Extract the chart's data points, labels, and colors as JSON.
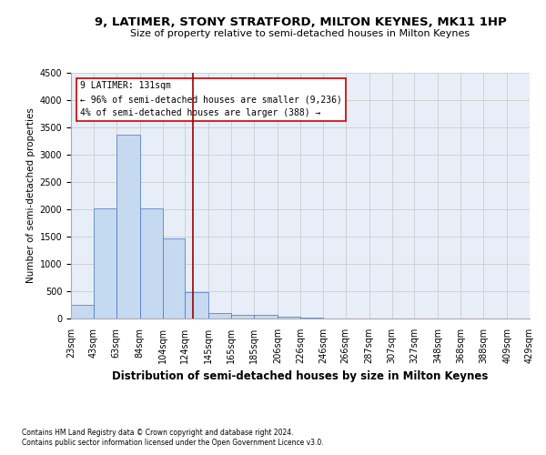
{
  "title": "9, LATIMER, STONY STRATFORD, MILTON KEYNES, MK11 1HP",
  "subtitle": "Size of property relative to semi-detached houses in Milton Keynes",
  "xlabel": "Distribution of semi-detached houses by size in Milton Keynes",
  "ylabel": "Number of semi-detached properties",
  "footnote1": "Contains HM Land Registry data © Crown copyright and database right 2024.",
  "footnote2": "Contains public sector information licensed under the Open Government Licence v3.0.",
  "annotation_line1": "9 LATIMER: 131sqm",
  "annotation_line2": "← 96% of semi-detached houses are smaller (9,236)",
  "annotation_line3": "4% of semi-detached houses are larger (388) →",
  "bar_color": "#c5d9f0",
  "bar_edge_color": "#4472c4",
  "bin_edges": [
    23,
    43,
    63,
    84,
    104,
    124,
    145,
    165,
    185,
    206,
    226,
    246,
    266,
    287,
    307,
    327,
    348,
    368,
    388,
    409,
    429
  ],
  "bar_heights": [
    250,
    2020,
    3370,
    2020,
    1470,
    480,
    100,
    70,
    60,
    40,
    15,
    8,
    5,
    3,
    2,
    1,
    1,
    0,
    0,
    0
  ],
  "property_size": 131,
  "red_line_color": "#990000",
  "ylim": [
    0,
    4500
  ],
  "yticks": [
    0,
    500,
    1000,
    1500,
    2000,
    2500,
    3000,
    3500,
    4000,
    4500
  ],
  "grid_color": "#cccccc",
  "bg_color": "#e8eef7",
  "annotation_box_color": "#ffffff",
  "annotation_box_edge": "#cc0000",
  "title_fontsize": 9.5,
  "subtitle_fontsize": 8,
  "ylabel_fontsize": 7.5,
  "xlabel_fontsize": 8.5,
  "tick_fontsize": 7,
  "annotation_fontsize": 7,
  "footnote_fontsize": 5.5
}
